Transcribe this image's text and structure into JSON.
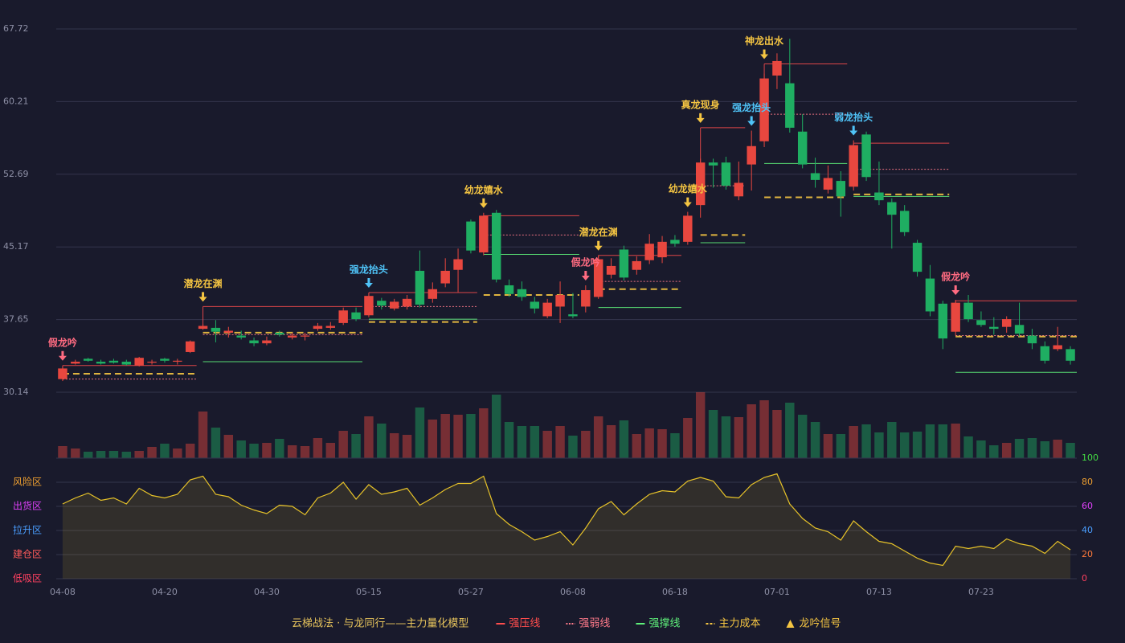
{
  "chart_data": {
    "type": "candlestick",
    "categories": [
      "04-08",
      null,
      null,
      null,
      null,
      null,
      null,
      null,
      "04-20",
      null,
      null,
      null,
      null,
      null,
      null,
      null,
      "04-30",
      null,
      null,
      null,
      null,
      null,
      null,
      null,
      "05-15",
      null,
      null,
      null,
      null,
      null,
      null,
      null,
      "05-27",
      null,
      null,
      null,
      null,
      null,
      null,
      null,
      "06-08",
      null,
      null,
      null,
      null,
      null,
      null,
      null,
      "06-18",
      null,
      null,
      null,
      null,
      null,
      null,
      null,
      "07-01",
      null,
      null,
      null,
      null,
      null,
      null,
      null,
      "07-13",
      null,
      null,
      null,
      null,
      null,
      null,
      null,
      "07-23",
      null,
      null,
      null,
      null,
      null,
      null,
      null
    ],
    "open": [
      31.5,
      33.1,
      33.6,
      33.3,
      33.4,
      33.3,
      32.9,
      33.2,
      33.6,
      33.3,
      34.3,
      36.7,
      36.8,
      36.3,
      36.0,
      35.5,
      35.2,
      36.3,
      35.8,
      35.9,
      36.7,
      36.8,
      37.3,
      38.4,
      38.1,
      39.6,
      38.8,
      39.0,
      42.7,
      39.8,
      41.4,
      42.8,
      47.8,
      44.6,
      48.7,
      41.2,
      40.8,
      39.5,
      38.0,
      39.0,
      38.2,
      39.0,
      40.0,
      42.3,
      44.9,
      42.8,
      43.8,
      44.1,
      45.9,
      45.7,
      49.5,
      53.9,
      53.9,
      50.4,
      53.7,
      56.1,
      62.9,
      62.1,
      57.1,
      52.8,
      51.1,
      52.0,
      51.4,
      56.8,
      50.8,
      49.8,
      48.9,
      45.6,
      41.9,
      39.3,
      36.4,
      39.4,
      37.6,
      36.9,
      36.9,
      37.1,
      36.0,
      34.9,
      34.6,
      34.6
    ],
    "high": [
      32.8,
      33.5,
      33.7,
      33.5,
      33.6,
      33.5,
      33.8,
      33.5,
      33.7,
      33.6,
      35.5,
      37.2,
      37.6,
      36.9,
      36.5,
      35.8,
      35.9,
      36.5,
      36.3,
      36.3,
      37.3,
      37.4,
      38.9,
      38.9,
      40.4,
      39.9,
      39.8,
      40.2,
      44.8,
      41.5,
      44.0,
      45.0,
      48.0,
      48.7,
      49.0,
      41.8,
      41.6,
      40.0,
      39.8,
      41.6,
      40.4,
      41.2,
      44.3,
      44.0,
      45.3,
      44.2,
      46.5,
      46.3,
      46.4,
      48.8,
      54.3,
      54.3,
      54.5,
      54.0,
      57.2,
      63.1,
      65.2,
      66.7,
      58.9,
      54.4,
      53.6,
      53.0,
      56.2,
      57.1,
      54.0,
      50.2,
      49.5,
      45.9,
      43.3,
      39.6,
      39.7,
      40.2,
      38.5,
      37.9,
      38.0,
      39.4,
      36.7,
      35.4,
      36.9,
      34.9
    ],
    "low": [
      31.3,
      33.0,
      33.3,
      33.0,
      33.1,
      32.9,
      32.8,
      33.0,
      33.2,
      33.0,
      34.2,
      36.6,
      35.3,
      35.8,
      35.6,
      34.9,
      35.0,
      35.9,
      35.6,
      35.5,
      36.5,
      36.6,
      37.1,
      37.5,
      37.9,
      38.7,
      38.6,
      38.7,
      38.9,
      39.4,
      41.0,
      40.5,
      44.5,
      44.3,
      41.5,
      40.0,
      39.6,
      38.3,
      37.8,
      37.3,
      37.8,
      38.4,
      39.8,
      41.9,
      41.7,
      42.3,
      43.4,
      43.5,
      45.2,
      45.4,
      48.2,
      51.3,
      51.1,
      50.0,
      51.0,
      55.5,
      61.5,
      57.0,
      53.3,
      51.3,
      50.7,
      48.3,
      51.0,
      52.0,
      49.5,
      45.0,
      46.3,
      42.1,
      38.0,
      34.6,
      36.0,
      37.4,
      36.9,
      36.1,
      36.3,
      35.9,
      34.6,
      33.1,
      34.4,
      33.0
    ],
    "close": [
      32.6,
      33.3,
      33.4,
      33.1,
      33.2,
      33.0,
      33.7,
      33.3,
      33.4,
      33.4,
      35.4,
      37.0,
      36.4,
      36.5,
      35.8,
      35.2,
      35.5,
      36.1,
      36.0,
      36.0,
      37.0,
      37.0,
      38.6,
      37.7,
      40.1,
      39.1,
      39.5,
      39.8,
      39.2,
      40.8,
      42.7,
      43.9,
      44.8,
      48.4,
      41.8,
      40.3,
      40.0,
      38.8,
      39.4,
      40.2,
      38.0,
      40.7,
      43.9,
      43.2,
      42.0,
      43.7,
      45.5,
      45.7,
      45.5,
      48.4,
      53.9,
      53.6,
      51.5,
      51.8,
      55.6,
      62.6,
      64.4,
      57.5,
      53.7,
      52.1,
      52.3,
      50.4,
      55.7,
      52.4,
      50.0,
      48.5,
      46.7,
      42.6,
      38.5,
      35.7,
      39.4,
      37.7,
      37.1,
      36.7,
      37.7,
      36.2,
      35.2,
      33.4,
      35.0,
      33.4
    ],
    "up_color": "#e8473f",
    "down_color": "#1fae62",
    "ylim": [
      30.14,
      67.72
    ],
    "yticks": [
      30.14,
      37.65,
      45.17,
      52.69,
      60.21,
      67.72
    ],
    "grid": true,
    "volume": {
      "values": [
        15,
        12,
        8,
        9,
        9,
        8,
        9,
        14,
        18,
        12,
        18,
        58,
        38,
        29,
        22,
        18,
        19,
        24,
        16,
        15,
        25,
        19,
        34,
        30,
        52,
        43,
        31,
        29,
        63,
        48,
        55,
        54,
        55,
        62,
        79,
        45,
        40,
        40,
        34,
        40,
        28,
        34,
        52,
        41,
        47,
        30,
        37,
        36,
        31,
        50,
        82,
        60,
        52,
        51,
        67,
        72,
        60,
        69,
        54,
        45,
        30,
        30,
        40,
        42,
        32,
        45,
        32,
        33,
        42,
        42,
        43,
        27,
        22,
        16,
        19,
        24,
        25,
        21,
        23,
        19
      ],
      "ylim": [
        0,
        82
      ]
    },
    "indicator": {
      "values": [
        62,
        67,
        71,
        65,
        67,
        62,
        75,
        69,
        67,
        70,
        82,
        85,
        70,
        68,
        61,
        57,
        54,
        61,
        60,
        53,
        67,
        71,
        80,
        66,
        78,
        70,
        72,
        75,
        61,
        67,
        74,
        79,
        79,
        85,
        54,
        45,
        39,
        32,
        35,
        39,
        28,
        42,
        58,
        64,
        53,
        62,
        70,
        73,
        72,
        81,
        84,
        81,
        68,
        67,
        78,
        84,
        87,
        62,
        50,
        42,
        39,
        32,
        48,
        39,
        31,
        29,
        23,
        17,
        13,
        11,
        27,
        25,
        27,
        25,
        33,
        29,
        27,
        21,
        31,
        24
      ],
      "color": "#e6c229",
      "ylim": [
        0,
        100
      ],
      "yticks": [
        0,
        20,
        40,
        60,
        80,
        100
      ],
      "ytick_colors": [
        "#ff4060",
        "#ff7a3a",
        "#4a9eff",
        "#e040fb",
        "#f0a030",
        "#44dd44"
      ],
      "zones": [
        {
          "value": 80,
          "label": "风险区",
          "color": "#f0a030"
        },
        {
          "value": 60,
          "label": "出货区",
          "color": "#e040fb"
        },
        {
          "value": 40,
          "label": "拉升区",
          "color": "#4a9eff"
        },
        {
          "value": 20,
          "label": "建仓区",
          "color": "#ff5a5a"
        },
        {
          "value": 0,
          "label": "低吸区",
          "color": "#ff4060"
        }
      ]
    },
    "signals": [
      {
        "index": 0,
        "label": "假龙吟",
        "color": "#ff6b81"
      },
      {
        "index": 11,
        "label": "潜龙在渊",
        "color": "#f5c542"
      },
      {
        "index": 24,
        "label": "强龙抬头",
        "color": "#4fc3f7"
      },
      {
        "index": 33,
        "label": "幼龙嬉水",
        "color": "#f5c542"
      },
      {
        "index": 41,
        "label": "假龙吟",
        "color": "#ff6b81"
      },
      {
        "index": 42,
        "label": "潜龙在渊",
        "color": "#f5c542"
      },
      {
        "index": 49,
        "label": "幼龙嬉水",
        "color": "#f5c542"
      },
      {
        "index": 50,
        "label": "真龙现身",
        "color": "#f5c542"
      },
      {
        "index": 54,
        "label": "强龙抬头",
        "color": "#4fc3f7"
      },
      {
        "index": 55,
        "label": "神龙出水",
        "color": "#f5c542"
      },
      {
        "index": 62,
        "label": "弱龙抬头",
        "color": "#4fc3f7"
      },
      {
        "index": 70,
        "label": "假龙吟",
        "color": "#ff6b81"
      }
    ],
    "levels": [
      {
        "start": 0,
        "end": 10,
        "resistance": 32.9,
        "midline": 31.5,
        "cost": 32.05
      },
      {
        "start": 11,
        "end": 23,
        "resistance": 39.0,
        "midline": 36.1,
        "support": 33.3,
        "cost": 36.3
      },
      {
        "start": 24,
        "end": 32,
        "resistance": 40.45,
        "midline": 39.0,
        "support": 37.7,
        "cost": 37.4
      },
      {
        "start": 33,
        "end": 40,
        "resistance": 48.4,
        "midline": 46.4,
        "support": 44.4,
        "cost": 40.2
      },
      {
        "start": 42,
        "end": 48,
        "resistance": 44.3,
        "midline": 41.6,
        "support": 38.9,
        "cost": 40.8
      },
      {
        "start": 50,
        "end": 53,
        "resistance": 57.5,
        "midline": 51.5,
        "support": 45.6,
        "cost": 46.4
      },
      {
        "start": 55,
        "end": 61,
        "resistance": 64.1,
        "midline": 58.9,
        "support": 53.8,
        "cost": 50.3
      },
      {
        "start": 62,
        "end": 69,
        "resistance": 55.9,
        "midline": 53.2,
        "support": 50.4,
        "cost": 50.6
      },
      {
        "start": 70,
        "end": 79,
        "resistance": 39.6,
        "midline": 36.0,
        "support": 32.2,
        "cost": 35.9
      }
    ],
    "legend": {
      "title": "云梯战法 · 与龙同行——主力量化模型",
      "title_color": "#e6c35c",
      "items": [
        {
          "label": "强压线",
          "color": "#ff4d4d",
          "style": "solid"
        },
        {
          "label": "强弱线",
          "color": "#ff7a8a",
          "style": "dotted"
        },
        {
          "label": "强撑线",
          "color": "#5ef07a",
          "style": "solid"
        },
        {
          "label": "主力成本",
          "color": "#f5c542",
          "style": "dashed"
        },
        {
          "label": "龙吟信号",
          "color": "#f5c542",
          "style": "triangle"
        }
      ]
    }
  }
}
